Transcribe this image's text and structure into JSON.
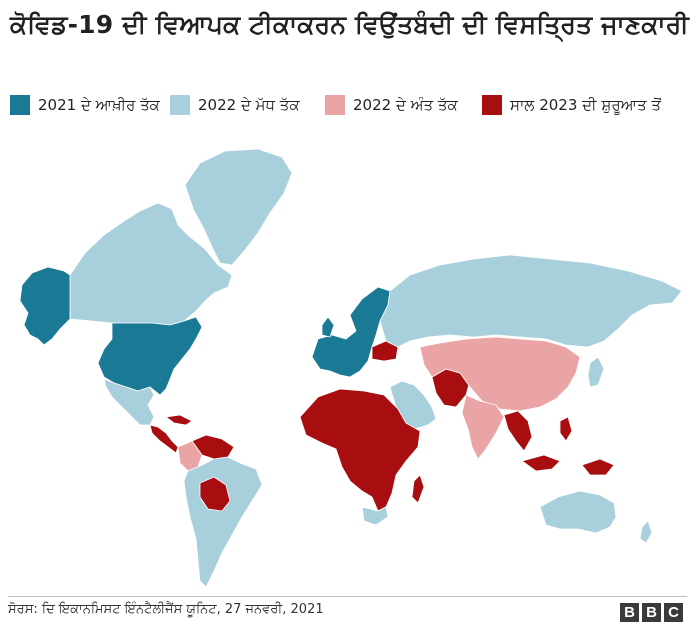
{
  "title": "ਕੋਵਿਡ-19 ਦੀ ਵਿਆਪਕ ਟੀਕਾਕਰਨ ਵਿਉਂਤਬੰਦੀ ਦੀ ਵਿਸਤ੍ਰਿਤ ਜਾਣਕਾਰੀ",
  "legend": [
    {
      "label": "2021 ਦੇ ਆਖ਼ੀਰ ਤੱਕ",
      "color": "#1a7a96"
    },
    {
      "label": "2022 ਦੇ ਮੱਧ ਤੱਕ",
      "color": "#a8cfdc"
    },
    {
      "label": "2022 ਦੇ ਅੰਤ ਤੱਕ",
      "color": "#eba4a5"
    },
    {
      "label": "ਸਾਲ 2023 ਦੀ ਸ਼ੁਰੂਆਤ ਤੋਂ",
      "color": "#a80d10"
    }
  ],
  "regions": {
    "greenland": "2022 ਦੇ ਮੱਧ ਤੱਕ",
    "canada": "2022 ਦੇ ਮੱਧ ਤੱਕ",
    "alaska": "2021 ਦੇ ਆਖ਼ੀਰ ਤੱਕ",
    "usa": "2021 ਦੇ ਆਖ਼ੀਰ ਤੱਕ",
    "mexico": "2022 ਦੇ ਮੱਧ ਤੱਕ",
    "central_america": "ਸਾਲ 2023 ਦੀ ਸ਼ੁਰੂਆਤ ਤੋਂ",
    "venezuela": "ਸਾਲ 2023 ਦੀ ਸ਼ੁਰੂਆਤ ਤੋਂ",
    "colombia": "2022 ਦੇ ਅੰਤ ਤੱਕ",
    "bolivia": "ਸਾਲ 2023 ਦੀ ਸ਼ੁਰੂਆਤ ਤੋਂ",
    "south_america": "2022 ਦੇ ਮੱਧ ਤੱਕ",
    "europe": "2021 ਦੇ ਆਖ਼ੀਰ ਤੱਕ",
    "ukraine": "ਸਾਲ 2023 ਦੀ ਸ਼ੁਰੂਆਤ ਤੋਂ",
    "russia": "2022 ਦੇ ਮੱਧ ਤੱਕ",
    "china": "2022 ਦੇ ਅੰਤ ਤੱਕ",
    "india": "2022 ਦੇ ਅੰਤ ਤੱਕ",
    "afghanistan_pakistan": "ਸਾਲ 2023 ਦੀ ਸ਼ੁਰੂਆਤ ਤੋਂ",
    "arabia": "2022 ਦੇ ਮੱਧ ਤੱਕ",
    "africa": "ਸਾਲ 2023 ਦੀ ਸ਼ੁਰੂਆਤ ਤੋਂ",
    "south_africa": "2022 ਦੇ ਮੱਧ ਤੱਕ",
    "southeast_asia": "ਸਾਲ 2023 ਦੀ ਸ਼ੁਰੂਆਤ ਤੋਂ",
    "japan": "2022 ਦੇ ਮੱਧ ਤੱਕ",
    "australia": "2022 ਦੇ ਮੱਧ ਤੱਕ",
    "new_zealand": "2022 ਦੇ ਮੱਧ ਤੱਕ"
  },
  "source": "ਸੋਰਸ: ਦਿ ਇਕਾਨਮਿਸਟ ਇੰਨਟੈਲੀਜੈਂਸ ਯੂਨਿਟ, 27 ਜਨਵਰੀ, 2021",
  "logo": [
    "B",
    "B",
    "C"
  ]
}
